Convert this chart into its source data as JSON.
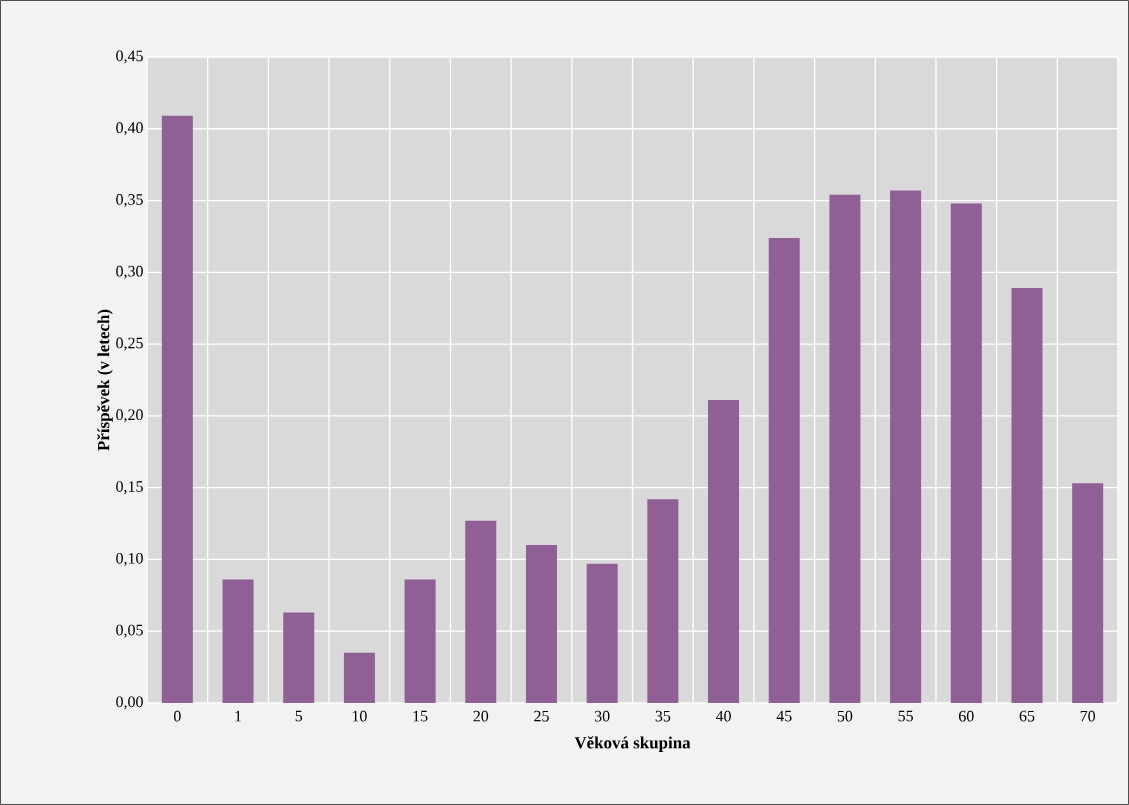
{
  "chart_data": {
    "type": "bar",
    "xlabel": "Věková skupina",
    "ylabel": "Příspěvek (v letech)",
    "categories": [
      "0",
      "1",
      "5",
      "10",
      "15",
      "20",
      "25",
      "30",
      "35",
      "40",
      "45",
      "50",
      "55",
      "60",
      "65",
      "70"
    ],
    "values": [
      0.409,
      0.086,
      0.063,
      0.035,
      0.086,
      0.127,
      0.11,
      0.097,
      0.142,
      0.211,
      0.324,
      0.354,
      0.357,
      0.348,
      0.289,
      0.153
    ],
    "color": "#8f5f95",
    "ylim": [
      0,
      0.45
    ],
    "yticks": [
      {
        "value": 0,
        "label": "0,00"
      },
      {
        "value": 0.05,
        "label": "0,05"
      },
      {
        "value": 0.1,
        "label": "0,10"
      },
      {
        "value": 0.15,
        "label": "0,15"
      },
      {
        "value": 0.2,
        "label": "0,20"
      },
      {
        "value": 0.25,
        "label": "0,25"
      },
      {
        "value": 0.3,
        "label": "0,30"
      },
      {
        "value": 0.35,
        "label": "0,35"
      },
      {
        "value": 0.4,
        "label": "0,40"
      },
      {
        "value": 0.45,
        "label": "0,45"
      }
    ],
    "grid": true
  }
}
